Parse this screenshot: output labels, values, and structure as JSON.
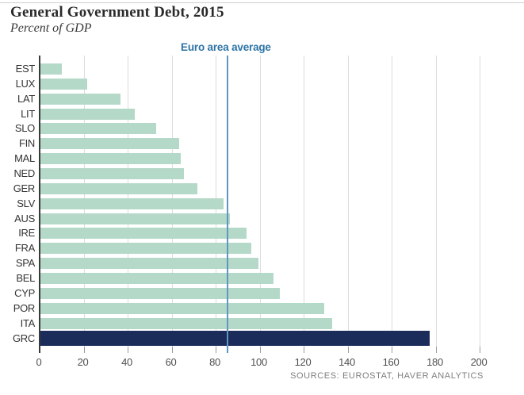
{
  "header": {
    "title": "General Government Debt, 2015",
    "subtitle": "Percent of GDP"
  },
  "source_note": "SOURCES: EUROSTAT, HAVER ANALYTICS",
  "chart_data": {
    "type": "bar",
    "orientation": "horizontal",
    "title": "General Government Debt, 2015",
    "subtitle": "Percent of GDP",
    "xlabel": "Percent of GDP",
    "xlim": [
      0,
      200
    ],
    "x_ticks": [
      0,
      20,
      40,
      60,
      80,
      100,
      120,
      140,
      160,
      180,
      200
    ],
    "grid": "vertical",
    "categories": [
      "EST",
      "LUX",
      "LAT",
      "LIT",
      "SLO",
      "FIN",
      "MAL",
      "NED",
      "GER",
      "SLV",
      "AUS",
      "IRE",
      "FRA",
      "SPA",
      "BEL",
      "CYP",
      "POR",
      "ITA",
      "GRC"
    ],
    "values": [
      9.7,
      21.4,
      36.5,
      42.7,
      52.5,
      63.1,
      63.9,
      65.1,
      71.2,
      83.2,
      86.2,
      93.8,
      95.8,
      99.2,
      106.0,
      108.9,
      129.0,
      132.7,
      176.9
    ],
    "highlight_category": "GRC",
    "reference_line": {
      "label": "Euro area average",
      "value": 85
    },
    "legend": null,
    "colors": {
      "bar": "#b5d9c8",
      "highlight_bar": "#1b2c5a",
      "reference_line": "#5f97be",
      "reference_label": "#2d74a6",
      "grid": "#dcdcdc",
      "axis": "#3a3a3a",
      "tick_label": "#4f4f4f",
      "country_label": "#333333",
      "source": "#7e7e7e"
    }
  }
}
